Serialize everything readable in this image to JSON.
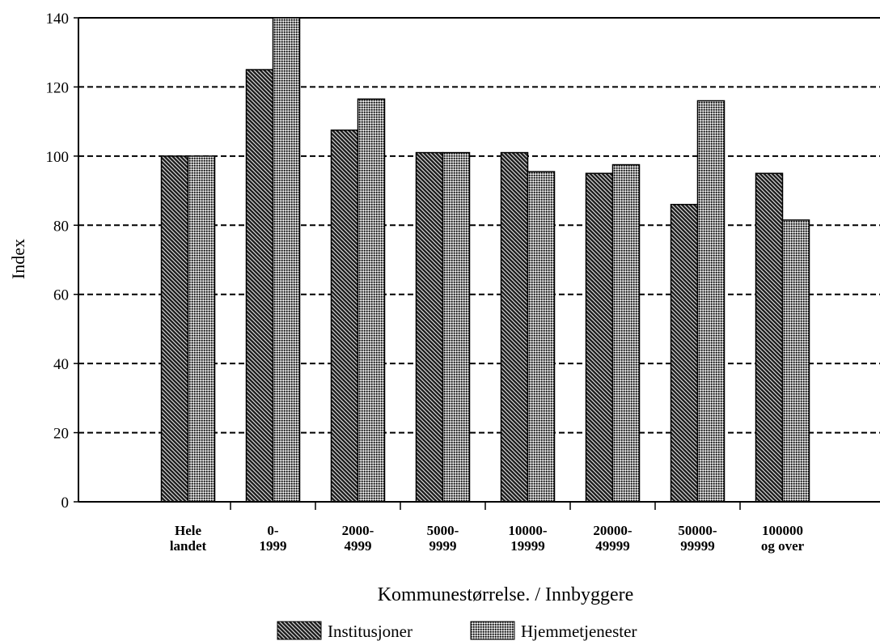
{
  "chart_data": {
    "type": "bar",
    "y_label": "Index",
    "x_label": "Kommunestørrelse. / Innbyggere",
    "categories": [
      "Hele\nlandet",
      "0-\n1999",
      "2000-\n4999",
      "5000-\n9999",
      "10000-\n19999",
      "20000-\n49999",
      "50000-\n99999",
      "100000\nog over"
    ],
    "series": [
      {
        "name": "Institusjoner",
        "color": "#222222",
        "values": [
          100,
          125,
          107.5,
          101,
          101,
          95,
          86,
          95
        ]
      },
      {
        "name": "Hjemmetjenester",
        "color": "#9a9a9a",
        "values": [
          100,
          140,
          116.5,
          101,
          95.5,
          97.5,
          116,
          81.5
        ]
      }
    ],
    "ylim": [
      0,
      140
    ],
    "yticks": [
      0,
      20,
      40,
      60,
      80,
      100,
      120,
      140
    ],
    "grid": true,
    "legend": "bottom"
  }
}
